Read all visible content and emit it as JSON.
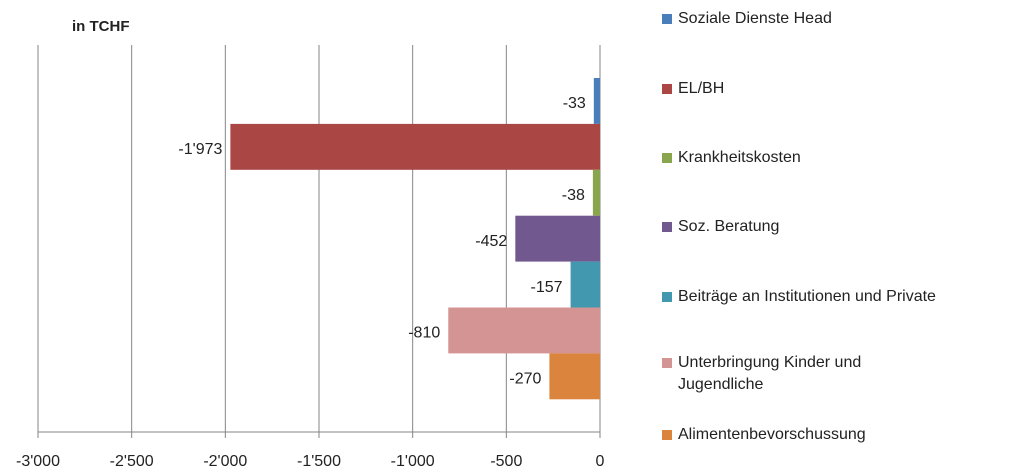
{
  "chart_data": {
    "type": "bar",
    "orientation": "horizontal",
    "title": "in TCHF",
    "xlim": [
      -3000,
      0
    ],
    "xticks": [
      {
        "value": -3000,
        "label": "-3'000"
      },
      {
        "value": -2500,
        "label": "-2'500"
      },
      {
        "value": -2000,
        "label": "-2'000"
      },
      {
        "value": -1500,
        "label": "-1'500"
      },
      {
        "value": -1000,
        "label": "-1'000"
      },
      {
        "value": -500,
        "label": "-500"
      },
      {
        "value": 0,
        "label": "0"
      }
    ],
    "grid": true,
    "legend": "right",
    "series": [
      {
        "name": "Soziale Dienste Head",
        "color": "#4a7ebb",
        "values": [
          -33
        ],
        "value_labels": [
          "-33"
        ]
      },
      {
        "name": "EL/BH",
        "color": "#aa4643",
        "values": [
          -1973
        ],
        "value_labels": [
          "-1'973"
        ]
      },
      {
        "name": "Krankheitskosten",
        "color": "#89a54e",
        "values": [
          -38
        ],
        "value_labels": [
          "-38"
        ]
      },
      {
        "name": "Soz. Beratung",
        "color": "#71588f",
        "values": [
          -452
        ],
        "value_labels": [
          "-452"
        ]
      },
      {
        "name": "Beiträge an Institutionen und Private",
        "color": "#4198af",
        "values": [
          -157
        ],
        "value_labels": [
          "-157"
        ]
      },
      {
        "name": "Unterbringung Kinder und Jugendliche",
        "color": "#d49494",
        "values": [
          -810
        ],
        "value_labels": [
          "-810"
        ]
      },
      {
        "name": "Alimentenbevorschussung",
        "color": "#db843d",
        "values": [
          -270
        ],
        "value_labels": [
          "-270"
        ]
      }
    ]
  }
}
